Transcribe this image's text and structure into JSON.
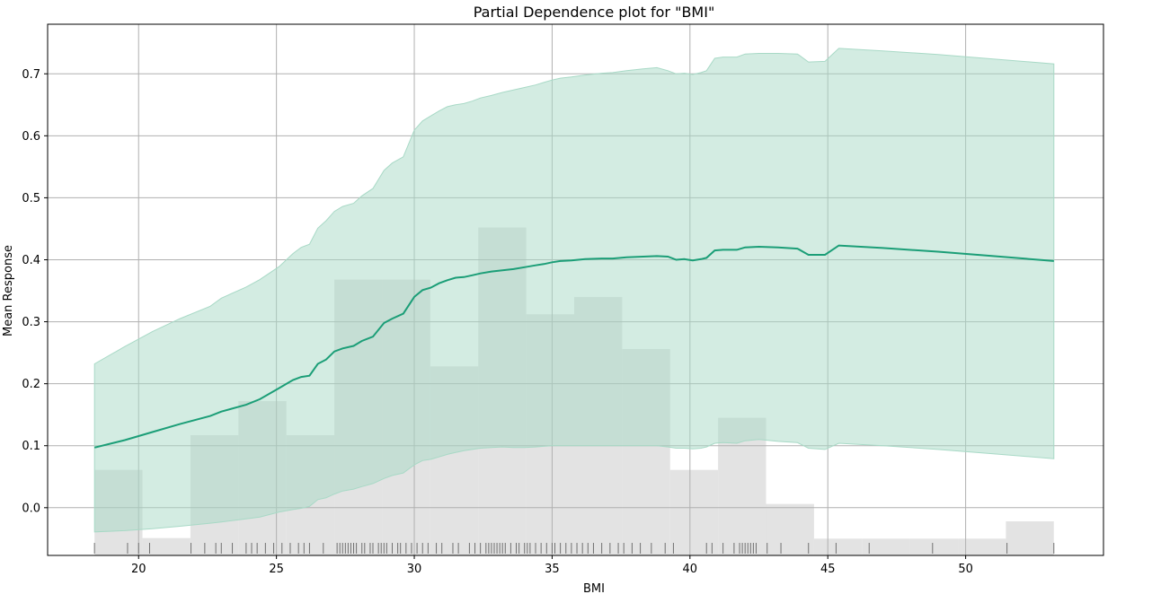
{
  "chart_data": {
    "type": "line",
    "title": "Partial Dependence plot for \"BMI\"",
    "xlabel": "BMI",
    "ylabel": "Mean Response",
    "xlim": [
      16.7,
      55.0
    ],
    "ylim": [
      -0.077,
      0.78
    ],
    "xticks": [
      20,
      25,
      30,
      35,
      40,
      45,
      50
    ],
    "yticks": [
      0.0,
      0.1,
      0.2,
      0.3,
      0.4,
      0.5,
      0.6,
      0.7
    ],
    "grid": true,
    "colors": {
      "line": "#1b9e77",
      "band": "#a8d9c6",
      "histogram": "#d9d9d9",
      "rug": "#707070",
      "grid": "#b0b0b0"
    },
    "series": [
      {
        "x": [
          18.4,
          19.5,
          20.5,
          21.5,
          22.6,
          23.0,
          23.9,
          24.4,
          25.1,
          25.6,
          25.9,
          26.2,
          26.5,
          26.8,
          27.1,
          27.4,
          27.8,
          28.1,
          28.5,
          28.9,
          29.2,
          29.6,
          30.0,
          30.3,
          30.6,
          30.9,
          31.2,
          31.5,
          31.8,
          32.1,
          32.4,
          32.8,
          33.2,
          33.6,
          34.0,
          34.4,
          34.7,
          35.0,
          35.3,
          35.7,
          36.2,
          36.8,
          37.2,
          37.7,
          38.3,
          38.8,
          39.2,
          39.5,
          39.8,
          40.1,
          40.4,
          40.6,
          40.9,
          41.2,
          41.7,
          42.0,
          42.5,
          43.2,
          43.9,
          44.3,
          44.9,
          45.4,
          47.0,
          49.0,
          51.0,
          53.2
        ],
        "y": [
          0.097,
          0.109,
          0.122,
          0.135,
          0.148,
          0.155,
          0.166,
          0.175,
          0.193,
          0.206,
          0.211,
          0.213,
          0.232,
          0.239,
          0.252,
          0.257,
          0.261,
          0.269,
          0.276,
          0.298,
          0.305,
          0.313,
          0.34,
          0.351,
          0.355,
          0.362,
          0.367,
          0.371,
          0.372,
          0.375,
          0.378,
          0.381,
          0.383,
          0.385,
          0.388,
          0.391,
          0.393,
          0.396,
          0.398,
          0.399,
          0.401,
          0.402,
          0.402,
          0.404,
          0.405,
          0.406,
          0.405,
          0.4,
          0.401,
          0.399,
          0.401,
          0.403,
          0.415,
          0.416,
          0.416,
          0.42,
          0.421,
          0.42,
          0.418,
          0.408,
          0.408,
          0.423,
          0.419,
          0.413,
          0.406,
          0.398
        ],
        "lower": [
          -0.039,
          -0.037,
          -0.034,
          -0.03,
          -0.025,
          -0.023,
          -0.018,
          -0.015,
          -0.007,
          -0.003,
          -0.001,
          0.002,
          0.013,
          0.016,
          0.022,
          0.027,
          0.03,
          0.034,
          0.039,
          0.047,
          0.052,
          0.056,
          0.069,
          0.076,
          0.078,
          0.082,
          0.086,
          0.089,
          0.092,
          0.094,
          0.096,
          0.097,
          0.098,
          0.097,
          0.097,
          0.098,
          0.099,
          0.1,
          0.1,
          0.1,
          0.1,
          0.1,
          0.1,
          0.1,
          0.1,
          0.1,
          0.098,
          0.096,
          0.096,
          0.095,
          0.096,
          0.098,
          0.104,
          0.105,
          0.104,
          0.108,
          0.11,
          0.107,
          0.105,
          0.096,
          0.094,
          0.104,
          0.1,
          0.094,
          0.087,
          0.079
        ],
        "upper": [
          0.232,
          0.26,
          0.284,
          0.305,
          0.325,
          0.338,
          0.356,
          0.368,
          0.389,
          0.41,
          0.42,
          0.425,
          0.451,
          0.463,
          0.478,
          0.486,
          0.491,
          0.503,
          0.515,
          0.544,
          0.556,
          0.566,
          0.609,
          0.624,
          0.632,
          0.64,
          0.647,
          0.65,
          0.652,
          0.656,
          0.661,
          0.665,
          0.67,
          0.674,
          0.678,
          0.682,
          0.686,
          0.69,
          0.693,
          0.695,
          0.698,
          0.701,
          0.702,
          0.705,
          0.708,
          0.71,
          0.705,
          0.7,
          0.701,
          0.699,
          0.702,
          0.705,
          0.725,
          0.727,
          0.727,
          0.732,
          0.733,
          0.733,
          0.732,
          0.719,
          0.72,
          0.741,
          0.737,
          0.731,
          0.724,
          0.716
        ]
      }
    ],
    "histogram": {
      "edges": [
        18.4,
        20.14,
        21.88,
        23.62,
        25.36,
        27.1,
        28.84,
        30.58,
        32.32,
        34.06,
        35.8,
        37.54,
        39.28,
        41.02,
        42.76,
        44.5,
        46.24,
        47.98,
        49.72,
        51.46,
        53.2
      ],
      "heights": [
        0.061,
        -0.049,
        0.117,
        0.172,
        0.117,
        0.368,
        0.368,
        0.228,
        0.452,
        0.312,
        0.34,
        0.256,
        0.061,
        0.145,
        0.006,
        -0.05,
        -0.05,
        -0.05,
        -0.05,
        -0.022
      ]
    },
    "rug": [
      18.4,
      19.6,
      20.0,
      20.4,
      21.9,
      22.4,
      22.8,
      23.0,
      23.4,
      23.9,
      24.1,
      24.3,
      24.6,
      24.9,
      25.2,
      25.5,
      25.8,
      26.0,
      26.2,
      26.7,
      27.2,
      27.3,
      27.4,
      27.5,
      27.6,
      27.7,
      27.8,
      27.9,
      28.1,
      28.2,
      28.4,
      28.5,
      28.7,
      28.8,
      28.9,
      29.0,
      29.2,
      29.4,
      29.5,
      29.7,
      29.9,
      30.1,
      30.3,
      30.5,
      30.8,
      31.0,
      31.4,
      31.6,
      32.0,
      32.2,
      32.4,
      32.6,
      32.7,
      32.8,
      32.9,
      33.0,
      33.1,
      33.2,
      33.3,
      33.5,
      33.7,
      33.8,
      34.0,
      34.1,
      34.2,
      34.4,
      34.6,
      34.8,
      35.0,
      35.1,
      35.3,
      35.5,
      35.7,
      35.9,
      36.1,
      36.3,
      36.5,
      36.8,
      37.1,
      37.4,
      37.6,
      37.9,
      38.2,
      38.6,
      39.1,
      39.4,
      40.6,
      40.8,
      41.2,
      41.6,
      41.8,
      41.9,
      42.0,
      42.1,
      42.2,
      42.3,
      42.4,
      42.8,
      43.3,
      44.3,
      45.3,
      46.5,
      48.8,
      51.5,
      53.2
    ]
  }
}
